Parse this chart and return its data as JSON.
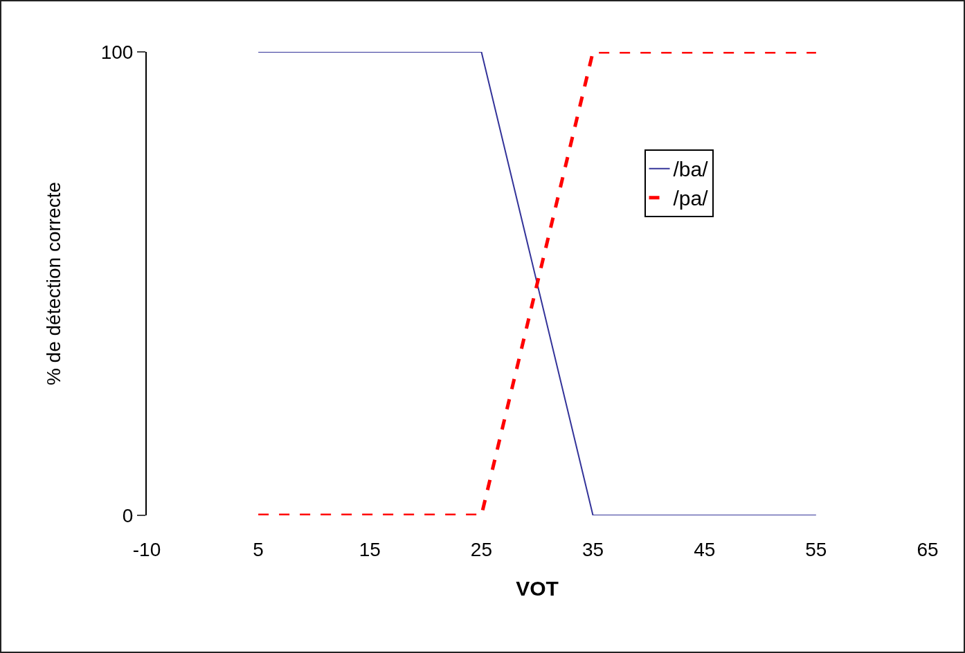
{
  "chart_data": {
    "type": "line",
    "xlabel": "VOT",
    "ylabel": "% de détection correcte",
    "categories": [
      "-10",
      "5",
      "15",
      "25",
      "35",
      "45",
      "55",
      "65"
    ],
    "series": [
      {
        "name": "/ba/",
        "color": "#333399",
        "line_style": "solid",
        "values": [
          null,
          100,
          100,
          100,
          0,
          0,
          0,
          null
        ]
      },
      {
        "name": "/pa/",
        "color": "#ff0000",
        "line_style": "dashed",
        "values": [
          null,
          0,
          0,
          0,
          100,
          100,
          100,
          null
        ]
      }
    ],
    "ylim": [
      0,
      100
    ],
    "yticks": [
      0,
      100
    ],
    "grid": false,
    "legend": "top right",
    "marker": "none"
  }
}
